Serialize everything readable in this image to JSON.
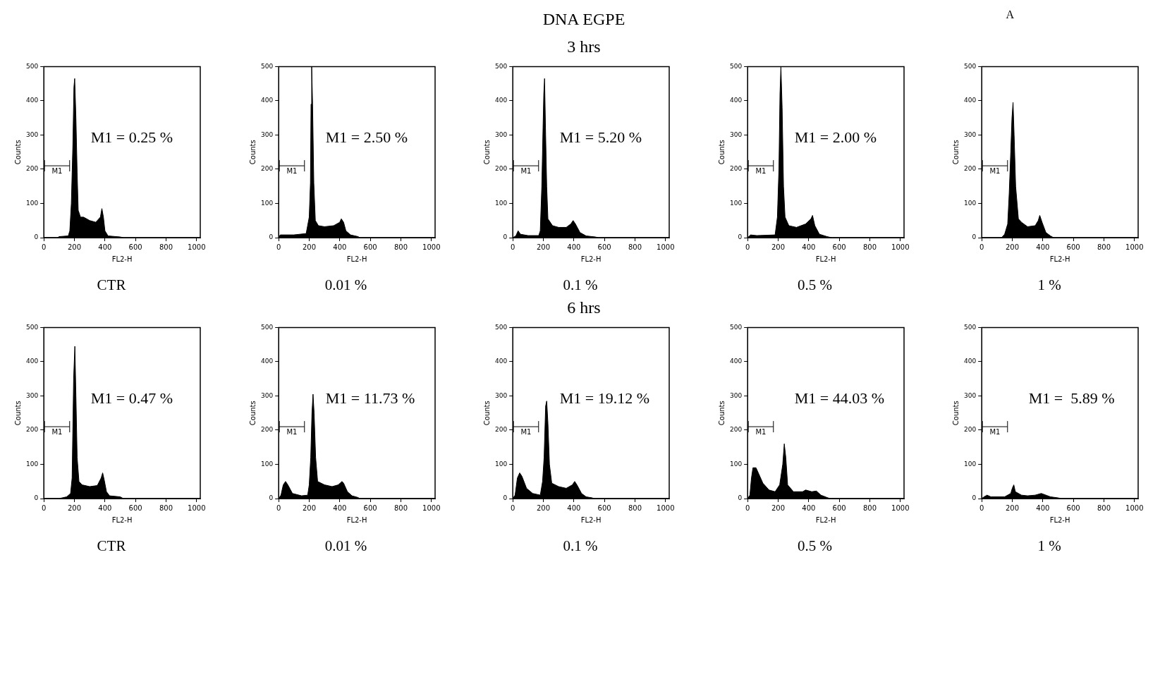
{
  "chart_data": [
    {
      "type": "other",
      "title": "DNA EGPE",
      "annotations": [
        "A"
      ]
    },
    {
      "type": "other",
      "title": "3 hrs"
    },
    {
      "type": "area",
      "subtitle": "CTR",
      "xlabel": "FL2-H",
      "ylabel": "Counts",
      "xlim": [
        0,
        1024
      ],
      "xticks": [
        0,
        200,
        400,
        600,
        800,
        1000
      ],
      "ylim": [
        0,
        500
      ],
      "yticks": [
        0,
        100,
        200,
        300,
        400,
        500
      ],
      "annotations": [
        "M1",
        "M1 = 0.25 %"
      ],
      "series": [
        {
          "color": "#000000",
          "x": [
            0,
            90,
            100,
            160,
            170,
            180,
            190,
            197,
            202,
            210,
            218,
            225,
            240,
            260,
            300,
            340,
            370,
            380,
            390,
            400,
            420,
            500,
            520,
            1023
          ],
          "values": [
            0,
            0,
            3,
            5,
            20,
            100,
            270,
            440,
            465,
            350,
            190,
            80,
            60,
            60,
            50,
            45,
            60,
            85,
            60,
            20,
            5,
            2,
            0,
            0
          ]
        }
      ]
    },
    {
      "type": "area",
      "subtitle": "0.01 %",
      "xlabel": "FL2-H",
      "ylabel": "Counts",
      "xlim": [
        0,
        1024
      ],
      "xticks": [
        0,
        200,
        400,
        600,
        800,
        1000
      ],
      "ylim": [
        0,
        500
      ],
      "yticks": [
        0,
        100,
        200,
        300,
        400,
        500
      ],
      "annotations": [
        "M1",
        "M1 = 2.50 %"
      ],
      "series": [
        {
          "color": "#000000",
          "x": [
            0,
            10,
            100,
            180,
            200,
            208,
            212,
            216,
            222,
            230,
            240,
            260,
            300,
            360,
            400,
            410,
            425,
            440,
            470,
            520,
            530,
            1023
          ],
          "values": [
            0,
            8,
            8,
            12,
            60,
            160,
            390,
            500,
            390,
            160,
            50,
            35,
            32,
            35,
            45,
            55,
            45,
            20,
            8,
            3,
            0,
            0
          ]
        }
      ]
    },
    {
      "type": "area",
      "subtitle": "0.1 %",
      "xlabel": "FL2-H",
      "ylabel": "Counts",
      "xlim": [
        0,
        1024
      ],
      "xticks": [
        0,
        200,
        400,
        600,
        800,
        1000
      ],
      "ylim": [
        0,
        500
      ],
      "yticks": [
        0,
        100,
        200,
        300,
        400,
        500
      ],
      "annotations": [
        "M1",
        "M1 = 5.20 %"
      ],
      "series": [
        {
          "color": "#000000",
          "x": [
            0,
            20,
            35,
            50,
            100,
            170,
            180,
            190,
            198,
            203,
            208,
            215,
            222,
            230,
            260,
            300,
            350,
            380,
            395,
            410,
            440,
            480,
            540,
            560,
            1023
          ],
          "values": [
            0,
            5,
            20,
            10,
            6,
            6,
            20,
            150,
            320,
            420,
            465,
            300,
            150,
            55,
            35,
            30,
            30,
            40,
            50,
            40,
            15,
            5,
            2,
            0,
            0
          ]
        }
      ]
    },
    {
      "type": "area",
      "subtitle": "0.5 %",
      "xlabel": "FL2-H",
      "ylabel": "Counts",
      "xlim": [
        0,
        1024
      ],
      "xticks": [
        0,
        200,
        400,
        600,
        800,
        1000
      ],
      "ylim": [
        0,
        500
      ],
      "yticks": [
        0,
        100,
        200,
        300,
        400,
        500
      ],
      "annotations": [
        "M1",
        "M1 = 2.00 %"
      ],
      "series": [
        {
          "color": "#000000",
          "x": [
            0,
            20,
            60,
            180,
            195,
            205,
            212,
            218,
            226,
            235,
            245,
            270,
            320,
            380,
            415,
            425,
            440,
            470,
            520,
            550,
            1023
          ],
          "values": [
            0,
            8,
            6,
            8,
            60,
            200,
            420,
            500,
            380,
            150,
            60,
            35,
            30,
            40,
            55,
            65,
            35,
            10,
            3,
            0,
            0
          ]
        }
      ]
    },
    {
      "type": "area",
      "subtitle": "1 %",
      "xlabel": "FL2-H",
      "ylabel": "Counts",
      "xlim": [
        0,
        1024
      ],
      "xticks": [
        0,
        200,
        400,
        600,
        800,
        1000
      ],
      "ylim": [
        0,
        500
      ],
      "yticks": [
        0,
        100,
        200,
        300,
        400,
        500
      ],
      "annotations": [
        "M1"
      ],
      "series": [
        {
          "color": "#000000",
          "x": [
            0,
            130,
            150,
            170,
            180,
            190,
            198,
            205,
            212,
            222,
            240,
            260,
            300,
            350,
            370,
            380,
            395,
            420,
            450,
            470,
            1023
          ],
          "values": [
            0,
            0,
            10,
            40,
            130,
            250,
            350,
            395,
            300,
            150,
            55,
            45,
            32,
            35,
            50,
            65,
            45,
            15,
            5,
            0,
            0
          ]
        }
      ]
    },
    {
      "type": "other",
      "title": "6 hrs"
    },
    {
      "type": "area",
      "subtitle": "CTR",
      "xlabel": "FL2-H",
      "ylabel": "Counts",
      "xlim": [
        0,
        1024
      ],
      "xticks": [
        0,
        200,
        400,
        600,
        800,
        1000
      ],
      "ylim": [
        0,
        500
      ],
      "yticks": [
        0,
        100,
        200,
        300,
        400,
        500
      ],
      "annotations": [
        "M1",
        "M1 = 0.47 %"
      ],
      "series": [
        {
          "color": "#000000",
          "x": [
            0,
            100,
            150,
            175,
            185,
            195,
            203,
            210,
            218,
            230,
            250,
            300,
            350,
            375,
            385,
            395,
            410,
            430,
            500,
            520,
            1023
          ],
          "values": [
            0,
            0,
            5,
            15,
            60,
            350,
            445,
            300,
            120,
            50,
            40,
            35,
            38,
            60,
            75,
            55,
            20,
            8,
            5,
            0,
            0
          ]
        }
      ]
    },
    {
      "type": "area",
      "subtitle": "0.01 %",
      "xlabel": "FL2-H",
      "ylabel": "Counts",
      "xlim": [
        0,
        1024
      ],
      "xticks": [
        0,
        200,
        400,
        600,
        800,
        1000
      ],
      "ylim": [
        0,
        500
      ],
      "yticks": [
        0,
        100,
        200,
        300,
        400,
        500
      ],
      "annotations": [
        "M1",
        "M1 = 11.73 %"
      ],
      "series": [
        {
          "color": "#000000",
          "x": [
            0,
            15,
            30,
            45,
            60,
            90,
            150,
            190,
            200,
            210,
            218,
            225,
            232,
            242,
            255,
            300,
            350,
            390,
            415,
            425,
            450,
            480,
            520,
            530,
            1023
          ],
          "values": [
            0,
            10,
            40,
            50,
            40,
            15,
            8,
            10,
            40,
            120,
            250,
            305,
            250,
            120,
            50,
            40,
            35,
            40,
            50,
            45,
            20,
            8,
            3,
            0,
            0
          ]
        }
      ]
    },
    {
      "type": "area",
      "subtitle": "0.1 %",
      "xlabel": "FL2-H",
      "ylabel": "Counts",
      "xlim": [
        0,
        1024
      ],
      "xticks": [
        0,
        200,
        400,
        600,
        800,
        1000
      ],
      "ylim": [
        0,
        500
      ],
      "yticks": [
        0,
        100,
        200,
        300,
        400,
        500
      ],
      "annotations": [
        "M1",
        "M1 = 19.12 %"
      ],
      "series": [
        {
          "color": "#000000",
          "x": [
            0,
            15,
            30,
            45,
            60,
            90,
            130,
            180,
            195,
            205,
            215,
            222,
            230,
            240,
            255,
            300,
            350,
            390,
            405,
            420,
            450,
            480,
            520,
            530,
            1023
          ],
          "values": [
            0,
            10,
            60,
            75,
            65,
            30,
            15,
            10,
            50,
            120,
            270,
            285,
            220,
            100,
            45,
            35,
            30,
            40,
            50,
            40,
            15,
            5,
            2,
            0,
            0
          ]
        }
      ]
    },
    {
      "type": "area",
      "subtitle": "0.5 %",
      "xlabel": "FL2-H",
      "ylabel": "Counts",
      "xlim": [
        0,
        1024
      ],
      "xticks": [
        0,
        200,
        400,
        600,
        800,
        1000
      ],
      "ylim": [
        0,
        500
      ],
      "yticks": [
        0,
        100,
        200,
        300,
        400,
        500
      ],
      "annotations": [
        "M1",
        "M1 = 44.03 %"
      ],
      "series": [
        {
          "color": "#000000",
          "x": [
            0,
            15,
            25,
            35,
            55,
            75,
            100,
            140,
            180,
            210,
            230,
            240,
            250,
            262,
            300,
            360,
            380,
            420,
            450,
            480,
            520,
            540,
            1023
          ],
          "values": [
            0,
            10,
            60,
            90,
            90,
            70,
            45,
            25,
            20,
            40,
            100,
            160,
            120,
            40,
            20,
            20,
            25,
            20,
            22,
            10,
            3,
            0,
            0
          ]
        }
      ]
    },
    {
      "type": "area",
      "subtitle": "1 %",
      "xlabel": "FL2-H",
      "ylabel": "Counts",
      "xlim": [
        0,
        1024
      ],
      "xticks": [
        0,
        200,
        400,
        600,
        800,
        1000
      ],
      "ylim": [
        0,
        500
      ],
      "yticks": [
        0,
        100,
        200,
        300,
        400,
        500
      ],
      "annotations": [
        "M1",
        "M1 =  5.89 %"
      ],
      "series": [
        {
          "color": "#000000",
          "x": [
            0,
            15,
            35,
            60,
            150,
            190,
            200,
            210,
            220,
            260,
            300,
            350,
            390,
            420,
            450,
            500,
            520,
            1023
          ],
          "values": [
            0,
            5,
            10,
            5,
            5,
            15,
            30,
            40,
            20,
            10,
            8,
            10,
            15,
            10,
            5,
            2,
            0,
            0
          ]
        }
      ]
    }
  ]
}
